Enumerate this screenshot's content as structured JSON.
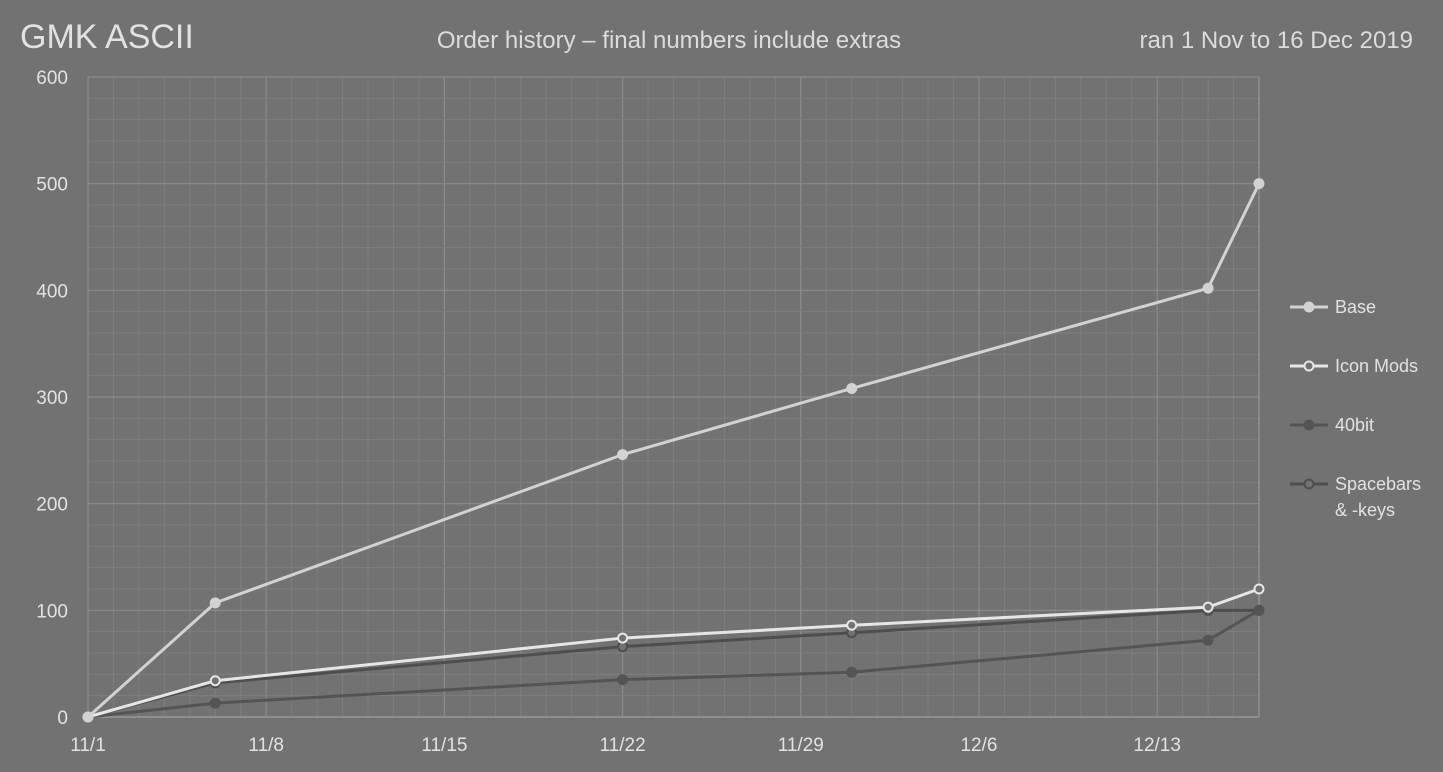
{
  "chart_data": {
    "type": "line",
    "title": "GMK ASCII",
    "subtitle": "Order history – final numbers include extras",
    "date_range_text": "ran 1 Nov to 16 Dec 2019",
    "x_dates": [
      "2019-11-01",
      "2019-11-06",
      "2019-11-22",
      "2019-12-01",
      "2019-12-15",
      "2019-12-17"
    ],
    "xlim": [
      "2019-11-01",
      "2019-12-17"
    ],
    "x_ticks": [
      {
        "date": "2019-11-01",
        "label": "11/1"
      },
      {
        "date": "2019-11-08",
        "label": "11/8"
      },
      {
        "date": "2019-11-15",
        "label": "11/15"
      },
      {
        "date": "2019-11-22",
        "label": "11/22"
      },
      {
        "date": "2019-11-29",
        "label": "11/29"
      },
      {
        "date": "2019-12-06",
        "label": "12/6"
      },
      {
        "date": "2019-12-13",
        "label": "12/13"
      }
    ],
    "ylim": [
      0,
      600
    ],
    "y_ticks": [
      0,
      100,
      200,
      300,
      400,
      500,
      600
    ],
    "grid": true,
    "legend_position": "right",
    "series": [
      {
        "name": "Base",
        "values": [
          0,
          107,
          246,
          308,
          402,
          500
        ],
        "color": "#d2d2d2",
        "marker": "filled"
      },
      {
        "name": "Icon Mods",
        "values": [
          0,
          34,
          74,
          86,
          103,
          120
        ],
        "color": "#e6e6e6",
        "marker": "hollow"
      },
      {
        "name": "40bit",
        "values": [
          0,
          13,
          35,
          42,
          72,
          100
        ],
        "color": "#545454",
        "marker": "filled"
      },
      {
        "name": "Spacebars\n& -keys",
        "values": [
          0,
          32,
          66,
          79,
          100,
          100
        ],
        "color": "#4e4e4e",
        "marker": "hollow"
      }
    ]
  }
}
